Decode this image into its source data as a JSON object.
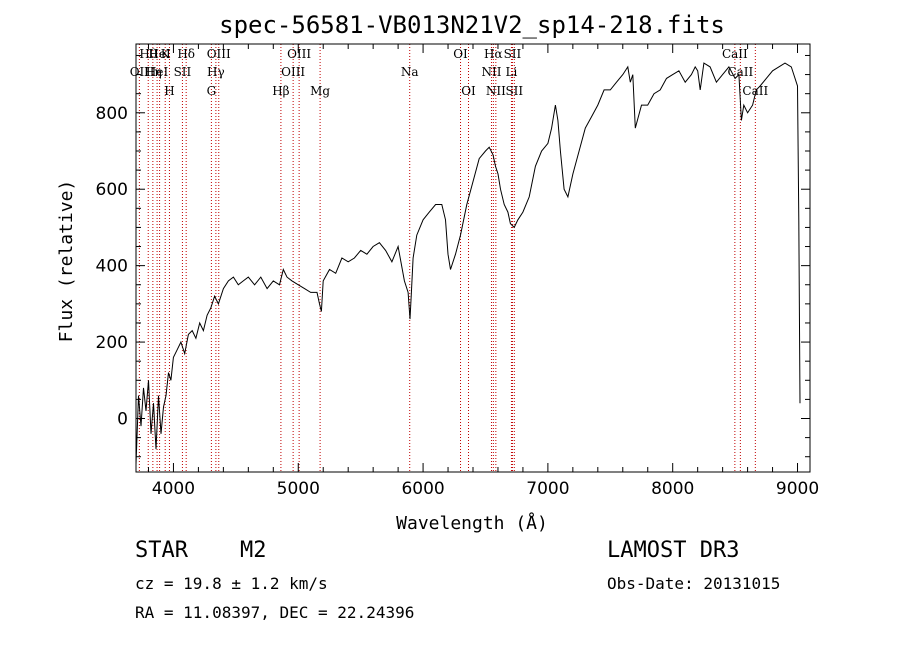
{
  "chart_data": {
    "type": "line",
    "title": "spec-56581-VB013N21V2_sp14-218.fits",
    "xlabel": "Wavelength (Å)",
    "ylabel": "Flux (relative)",
    "xlim": [
      3700,
      9100
    ],
    "ylim": [
      -140,
      980
    ],
    "xticks": [
      4000,
      5000,
      6000,
      7000,
      8000,
      9000
    ],
    "yticks": [
      0,
      200,
      400,
      600,
      800
    ],
    "series": [
      {
        "name": "flux",
        "x": [
          3700,
          3720,
          3740,
          3760,
          3780,
          3800,
          3820,
          3840,
          3860,
          3880,
          3900,
          3920,
          3940,
          3960,
          3980,
          4000,
          4030,
          4060,
          4090,
          4120,
          4150,
          4180,
          4210,
          4240,
          4270,
          4300,
          4330,
          4360,
          4400,
          4440,
          4480,
          4520,
          4560,
          4600,
          4650,
          4700,
          4750,
          4800,
          4850,
          4880,
          4910,
          4950,
          5000,
          5050,
          5100,
          5150,
          5170,
          5185,
          5200,
          5250,
          5300,
          5350,
          5400,
          5450,
          5500,
          5550,
          5600,
          5650,
          5700,
          5750,
          5800,
          5850,
          5880,
          5895,
          5905,
          5920,
          5950,
          6000,
          6050,
          6100,
          6150,
          6180,
          6200,
          6220,
          6260,
          6300,
          6350,
          6400,
          6450,
          6500,
          6530,
          6560,
          6580,
          6600,
          6620,
          6650,
          6680,
          6700,
          6730,
          6760,
          6800,
          6850,
          6900,
          6950,
          7000,
          7030,
          7060,
          7080,
          7100,
          7130,
          7160,
          7200,
          7250,
          7300,
          7350,
          7400,
          7450,
          7500,
          7550,
          7600,
          7640,
          7660,
          7680,
          7700,
          7750,
          7800,
          7850,
          7900,
          7950,
          8000,
          8050,
          8100,
          8150,
          8180,
          8200,
          8220,
          8250,
          8300,
          8350,
          8400,
          8450,
          8500,
          8530,
          8550,
          8570,
          8600,
          8640,
          8670,
          8700,
          8750,
          8800,
          8850,
          8900,
          8950,
          9000,
          9010,
          9020
        ],
        "y": [
          -120,
          60,
          -20,
          80,
          20,
          100,
          -40,
          40,
          -80,
          60,
          -40,
          30,
          60,
          120,
          100,
          160,
          180,
          200,
          170,
          220,
          230,
          210,
          250,
          230,
          270,
          290,
          320,
          300,
          340,
          360,
          370,
          350,
          360,
          370,
          350,
          370,
          340,
          360,
          350,
          390,
          370,
          360,
          350,
          340,
          330,
          330,
          300,
          280,
          360,
          390,
          380,
          420,
          410,
          420,
          440,
          430,
          450,
          460,
          440,
          410,
          450,
          360,
          330,
          260,
          320,
          420,
          480,
          520,
          540,
          560,
          560,
          520,
          430,
          390,
          430,
          480,
          560,
          620,
          680,
          700,
          710,
          690,
          660,
          640,
          600,
          560,
          540,
          510,
          500,
          520,
          540,
          580,
          660,
          700,
          720,
          760,
          820,
          780,
          700,
          600,
          580,
          640,
          700,
          760,
          790,
          820,
          860,
          860,
          880,
          900,
          920,
          880,
          900,
          760,
          820,
          820,
          850,
          860,
          890,
          900,
          910,
          880,
          900,
          920,
          910,
          860,
          930,
          920,
          880,
          900,
          920,
          890,
          900,
          780,
          820,
          800,
          820,
          860,
          870,
          890,
          910,
          920,
          930,
          920,
          870,
          520,
          40
        ]
      }
    ],
    "spectral_lines": [
      {
        "wl": 3727,
        "label": "OII",
        "row": 2
      },
      {
        "wl": 3798,
        "label": "Hθ",
        "row": 1
      },
      {
        "wl": 3835,
        "label": "Hη",
        "row": 2
      },
      {
        "wl": 3869,
        "label": "HeI",
        "row": 2
      },
      {
        "wl": 3889,
        "label": "HeI",
        "row": 1
      },
      {
        "wl": 3934,
        "label": "K",
        "row": 1
      },
      {
        "wl": 3968,
        "label": "H",
        "row": 3
      },
      {
        "wl": 4072,
        "label": "SII",
        "row": 2
      },
      {
        "wl": 4102,
        "label": "Hδ",
        "row": 1
      },
      {
        "wl": 4304,
        "label": "G",
        "row": 3
      },
      {
        "wl": 4340,
        "label": "Hγ",
        "row": 2
      },
      {
        "wl": 4363,
        "label": "OIII",
        "row": 1
      },
      {
        "wl": 4861,
        "label": "Hβ",
        "row": 3
      },
      {
        "wl": 4959,
        "label": "OIII",
        "row": 2
      },
      {
        "wl": 5007,
        "label": "OIII",
        "row": 1
      },
      {
        "wl": 5175,
        "label": "Mg",
        "row": 3
      },
      {
        "wl": 5893,
        "label": "Na",
        "row": 2
      },
      {
        "wl": 6300,
        "label": "OI",
        "row": 1
      },
      {
        "wl": 6364,
        "label": "OI",
        "row": 3
      },
      {
        "wl": 6548,
        "label": "NII",
        "row": 2
      },
      {
        "wl": 6563,
        "label": "Hα",
        "row": 1
      },
      {
        "wl": 6583,
        "label": "NII",
        "row": 3
      },
      {
        "wl": 6708,
        "label": "Li",
        "row": 2
      },
      {
        "wl": 6716,
        "label": "SII",
        "row": 1
      },
      {
        "wl": 6731,
        "label": "SII",
        "row": 3
      },
      {
        "wl": 8498,
        "label": "CaII",
        "row": 1
      },
      {
        "wl": 8542,
        "label": "CaII",
        "row": 2
      },
      {
        "wl": 8662,
        "label": "CaII",
        "row": 3
      }
    ]
  },
  "info": {
    "object_type": "STAR",
    "subclass": "M2",
    "survey": "LAMOST DR3",
    "cz": "cz = 19.8 ± 1.2 km/s",
    "obs_date": "Obs-Date: 20131015",
    "coords": "RA =  11.08397, DEC =  22.24396"
  },
  "colors": {
    "axis": "#000000",
    "line": "#000000",
    "marker": "#c00000"
  }
}
